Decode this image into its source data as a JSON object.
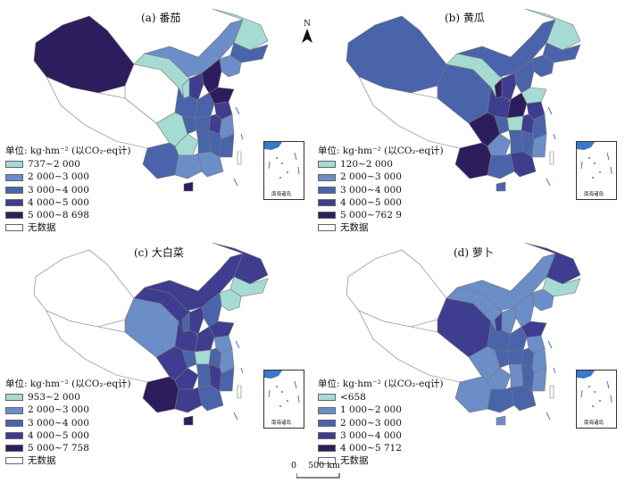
{
  "unit_label": "单位: kg·hm⁻² (以CO₂-eq计)",
  "no_data_label": "无数据",
  "inset_label": "南海诸岛",
  "north_label": "N",
  "scale": {
    "zero": "0",
    "distance": "500 km"
  },
  "colors": {
    "c1": "#a6dbd3",
    "c2": "#6b8ec8",
    "c3": "#4a64ab",
    "c4": "#3f3d90",
    "c5": "#2e1d5c",
    "none": "#ffffff",
    "sea": "#3a78c8"
  },
  "panels": [
    {
      "title": "(a) 番茄",
      "legend": [
        "737~2 000",
        "2 000~3 000",
        "3 000~4 000",
        "4 000~5 000",
        "5 000~8 698"
      ],
      "regions": {
        "xinjiang": "c5",
        "tibet": "none",
        "qinghai": "none",
        "gansu": "c1",
        "innermongolia": "c2",
        "heilongjiang": "c1",
        "jilin": "c3",
        "liaoning": "c2",
        "hebei": "c5",
        "shandong": "c5",
        "shanxi": "c4",
        "shaanxi": "c3",
        "ningxia": "c1",
        "henan": "c3",
        "sichuan": "c1",
        "yunnan": "c3",
        "guizhou": "c1",
        "hubei": "c3",
        "hunan": "c3",
        "jiangxi": "c3",
        "anhui": "c4",
        "jiangsu": "c4",
        "zhejiang": "c2",
        "fujian": "c3",
        "guangdong": "c2",
        "guangxi": "c2",
        "hainan": "c5",
        "chongqing": "c3",
        "taiwan": "none"
      }
    },
    {
      "title": "(b) 黄瓜",
      "legend": [
        "120~2 000",
        "2 000~3 000",
        "3 000~4 000",
        "4 000~5 000",
        "5 000~762 9"
      ],
      "regions": {
        "xinjiang": "c3",
        "tibet": "none",
        "qinghai": "c3",
        "gansu": "c1",
        "innermongolia": "c3",
        "heilongjiang": "c1",
        "jilin": "c3",
        "liaoning": "c3",
        "hebei": "c3",
        "shandong": "c1",
        "shanxi": "c4",
        "shaanxi": "c4",
        "ningxia": "c5",
        "henan": "c5",
        "sichuan": "c5",
        "yunnan": "c5",
        "guizhou": "c2",
        "hubei": "c1",
        "hunan": "c3",
        "jiangxi": "c3",
        "anhui": "c4",
        "jiangsu": "c4",
        "zhejiang": "c3",
        "fujian": "c2",
        "guangdong": "c4",
        "guangxi": "c3",
        "hainan": "c3",
        "chongqing": "c3",
        "taiwan": "none"
      }
    },
    {
      "title": "(c) 大白菜",
      "legend": [
        "953~2 000",
        "2 000~3 000",
        "3 000~4 000",
        "4 000~5 000",
        "5 000~7 758"
      ],
      "regions": {
        "xinjiang": "none",
        "tibet": "none",
        "qinghai": "c2",
        "gansu": "c4",
        "innermongolia": "c4",
        "heilongjiang": "c4",
        "jilin": "c1",
        "liaoning": "c1",
        "hebei": "c3",
        "shandong": "c4",
        "shanxi": "c4",
        "shaanxi": "c4",
        "ningxia": "c3",
        "henan": "c4",
        "sichuan": "c4",
        "yunnan": "c5",
        "guizhou": "c4",
        "hubei": "c1",
        "hunan": "c3",
        "jiangxi": "c4",
        "anhui": "c3",
        "jiangsu": "c2",
        "zhejiang": "c2",
        "fujian": "c3",
        "guangdong": "c3",
        "guangxi": "c4",
        "hainan": "c5",
        "chongqing": "c3",
        "taiwan": "none"
      }
    },
    {
      "title": "(d) 萝卜",
      "legend": [
        "<658",
        "1 000~2 000",
        "2 000~3 000",
        "3 000~4 000",
        "4 000~5 712"
      ],
      "regions": {
        "xinjiang": "none",
        "tibet": "none",
        "qinghai": "c4",
        "gansu": "c2",
        "innermongolia": "c2",
        "heilongjiang": "c4",
        "jilin": "c1",
        "liaoning": "c2",
        "hebei": "c2",
        "shandong": "c4",
        "shanxi": "c2",
        "shaanxi": "c3",
        "ningxia": "c4",
        "henan": "c3",
        "sichuan": "c2",
        "yunnan": "c2",
        "guizhou": "c2",
        "hubei": "c3",
        "hunan": "c2",
        "jiangxi": "c3",
        "anhui": "c3",
        "jiangsu": "c2",
        "zhejiang": "c2",
        "fujian": "c2",
        "guangdong": "c3",
        "guangxi": "c3",
        "hainan": "c2",
        "chongqing": "c3",
        "taiwan": "none"
      }
    }
  ]
}
